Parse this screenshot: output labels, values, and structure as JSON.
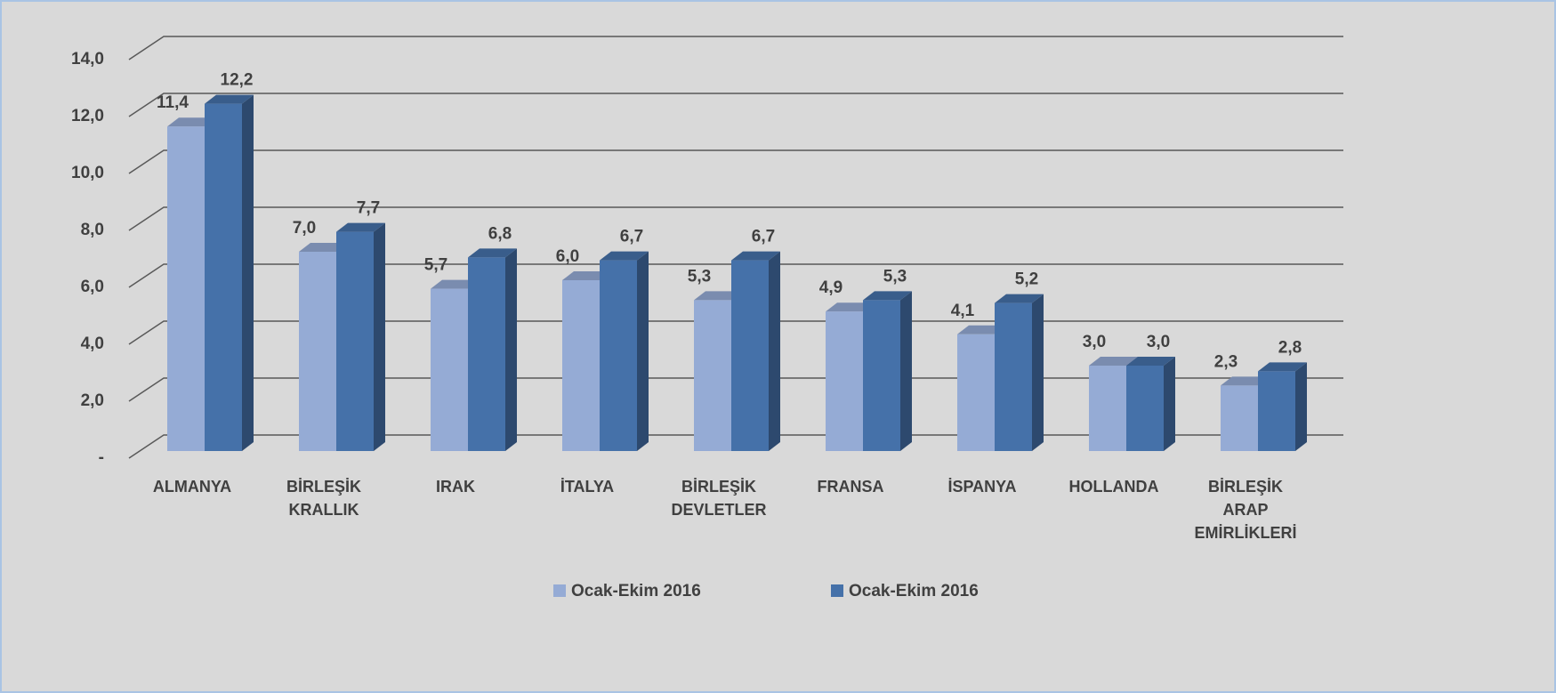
{
  "chart_data": {
    "type": "bar3d",
    "categories": [
      "ALMANYA",
      "BİRLEŞİK KRALLIK",
      "IRAK",
      "İTALYA",
      "BİRLEŞİK DEVLETLER",
      "FRANSA",
      "İSPANYA",
      "HOLLANDA",
      "BİRLEŞİK ARAP EMİRLİKLERİ"
    ],
    "series": [
      {
        "name": "Ocak-Ekim 2016",
        "color": "#95abd5",
        "values": [
          11.4,
          7.0,
          5.7,
          6.0,
          5.3,
          4.9,
          4.1,
          3.0,
          2.3
        ],
        "value_labels": [
          "11,4",
          "7,0",
          "5,7",
          "6,0",
          "5,3",
          "4,9",
          "4,1",
          "3,0",
          "2,3"
        ]
      },
      {
        "name": "Ocak-Ekim 2016",
        "color": "#4571a9",
        "values": [
          12.2,
          7.7,
          6.8,
          6.7,
          6.7,
          5.3,
          5.2,
          3.0,
          2.8
        ],
        "value_labels": [
          "12,2",
          "7,7",
          "6,8",
          "6,7",
          "6,7",
          "5,3",
          "5,2",
          "3,0",
          "2,8"
        ]
      }
    ],
    "ylim": [
      0,
      14
    ],
    "yticks": [
      {
        "value": 0,
        "label": "-"
      },
      {
        "value": 2,
        "label": "2,0"
      },
      {
        "value": 4,
        "label": "4,0"
      },
      {
        "value": 6,
        "label": "6,0"
      },
      {
        "value": 8,
        "label": "8,0"
      },
      {
        "value": 10,
        "label": "10,0"
      },
      {
        "value": 12,
        "label": "12,0"
      },
      {
        "value": 14,
        "label": "14,0"
      }
    ],
    "grid": true,
    "legend": "bottom"
  }
}
